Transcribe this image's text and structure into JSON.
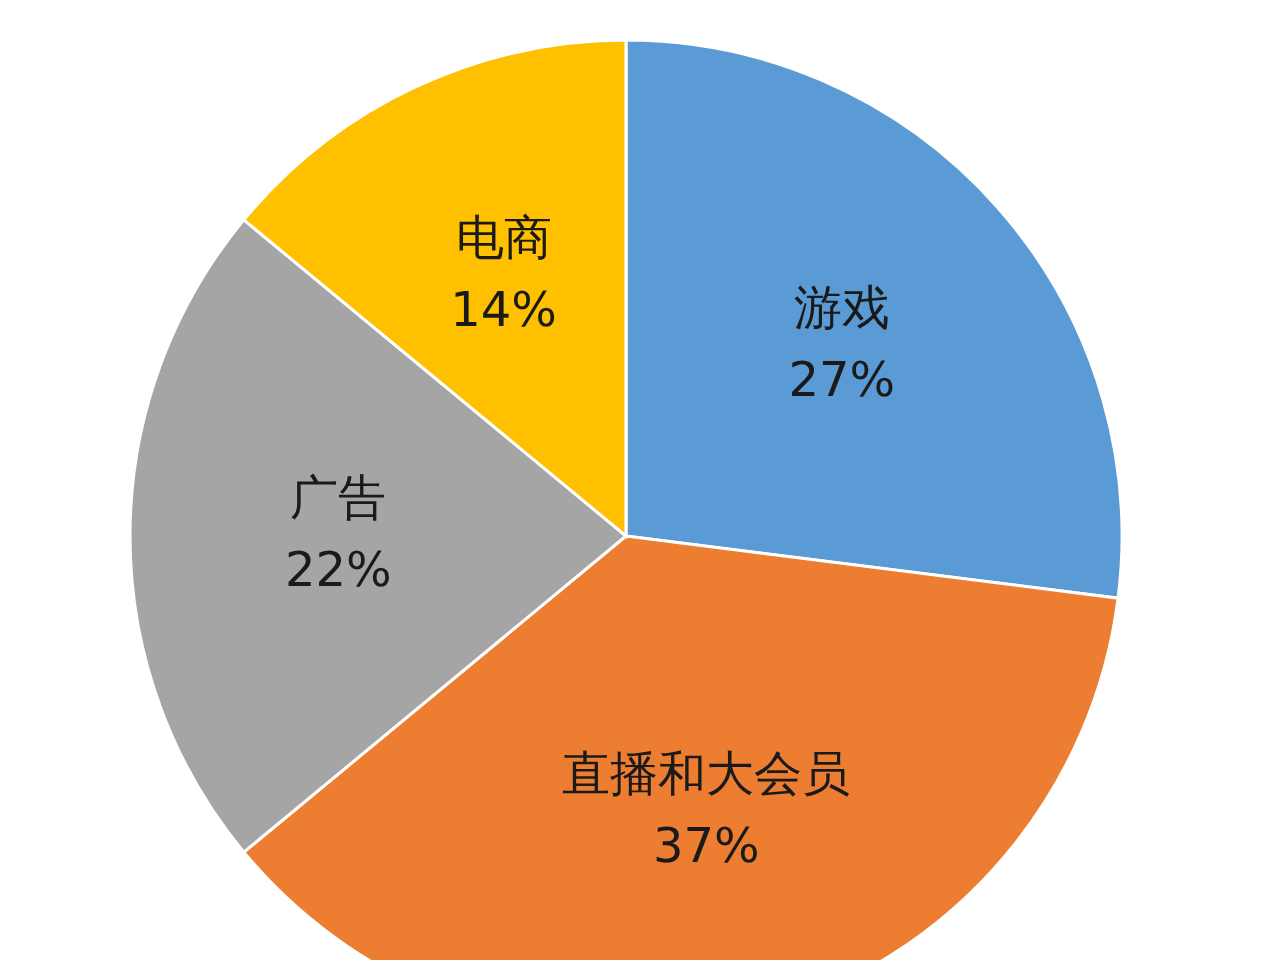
{
  "chart_data": {
    "type": "pie",
    "categories": [
      "游戏",
      "直播和大会员",
      "广告",
      "电商"
    ],
    "values": [
      27,
      37,
      22,
      14
    ],
    "value_labels": [
      "27%",
      "37%",
      "22%",
      "14%"
    ],
    "colors": [
      "#5b9bd5",
      "#ed7d31",
      "#a5a5a5",
      "#ffc000"
    ]
  }
}
